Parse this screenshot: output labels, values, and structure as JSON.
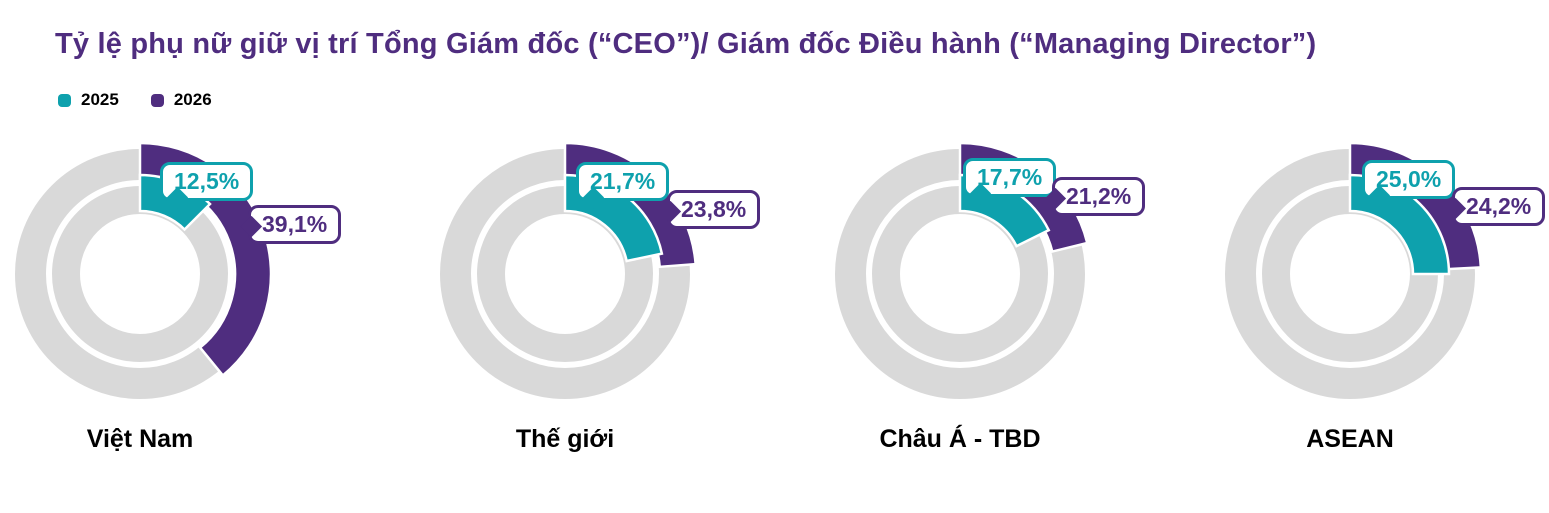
{
  "title": "Tỷ lệ phụ nữ giữ vị trí Tổng Giám đốc (“CEO”)/ Giám đốc Điều hành (“Managing Director”)",
  "colors": {
    "teal": "#0EA1AD",
    "purple": "#4F2D7F",
    "ring_gray": "#D9D9D9",
    "title_text": "#4F2D7F",
    "category_text": "#000000",
    "background": "#FFFFFF"
  },
  "legend": {
    "items": [
      {
        "label": "2025",
        "color": "#0EA1AD"
      },
      {
        "label": "2026",
        "color": "#4F2D7F"
      }
    ]
  },
  "chart_data": {
    "type": "pie",
    "subtype": "double-ring-donut",
    "title": "Tỷ lệ phụ nữ giữ vị trí Tổng Giám đốc (“CEO”)/ Giám đốc Điều hành (“Managing Director”)",
    "unit": "%",
    "arc_start": "12-o'clock-clockwise",
    "legend_position": "top-left",
    "categories": [
      "Việt Nam",
      "Thế giới",
      "Châu Á - TBD",
      "ASEAN"
    ],
    "series": [
      {
        "name": "2025",
        "ring": "inner",
        "color": "#0EA1AD",
        "values": [
          12.5,
          21.7,
          17.7,
          25.0
        ],
        "labels": [
          "12,5%",
          "21,7%",
          "17,7%",
          "25,0%"
        ]
      },
      {
        "name": "2026",
        "ring": "outer",
        "color": "#4F2D7F",
        "values": [
          39.1,
          23.8,
          21.2,
          24.2
        ],
        "labels": [
          "39,1%",
          "23,8%",
          "21,2%",
          "24,2%"
        ]
      }
    ]
  }
}
